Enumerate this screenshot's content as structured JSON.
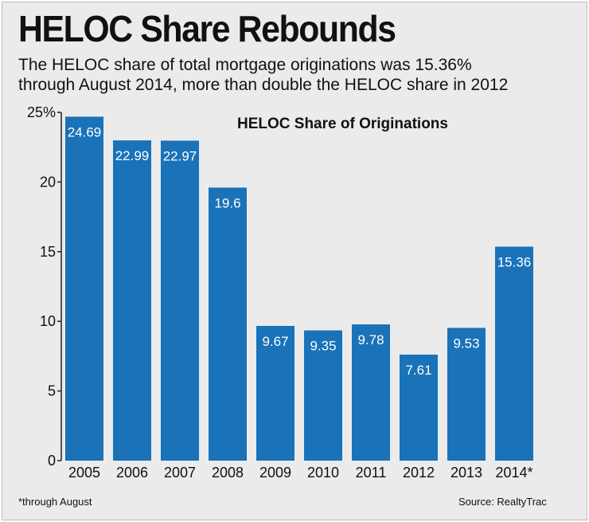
{
  "header": {
    "title": "HELOC Share Rebounds",
    "subtitle_line1": "The HELOC share of total mortgage originations was 15.36%",
    "subtitle_line2": "through August 2014, more than double the HELOC share in 2012"
  },
  "footer": {
    "footnote": "*through August",
    "source": "Source: RealtyTrac"
  },
  "colors": {
    "bar": "#1a72b8",
    "background": "#ebebeb",
    "axis": "#222222"
  },
  "chart_data": {
    "type": "bar",
    "title": "HELOC Share of Originations",
    "categories": [
      "2005",
      "2006",
      "2007",
      "2008",
      "2009",
      "2010",
      "2011",
      "2012",
      "2013",
      "2014*"
    ],
    "values": [
      24.69,
      22.99,
      22.97,
      19.6,
      9.67,
      9.35,
      9.78,
      7.61,
      9.53,
      15.36
    ],
    "value_labels": [
      "24.69",
      "22.99",
      "22.97",
      "19.6",
      "9.67",
      "9.35",
      "9.78",
      "7.61",
      "9.53",
      "15.36"
    ],
    "y_ticks": [
      0,
      5,
      10,
      15,
      20,
      25
    ],
    "y_tick_labels": [
      "0",
      "5",
      "10",
      "15",
      "20",
      "25%"
    ],
    "ylim": [
      0,
      25
    ],
    "grid": false
  }
}
